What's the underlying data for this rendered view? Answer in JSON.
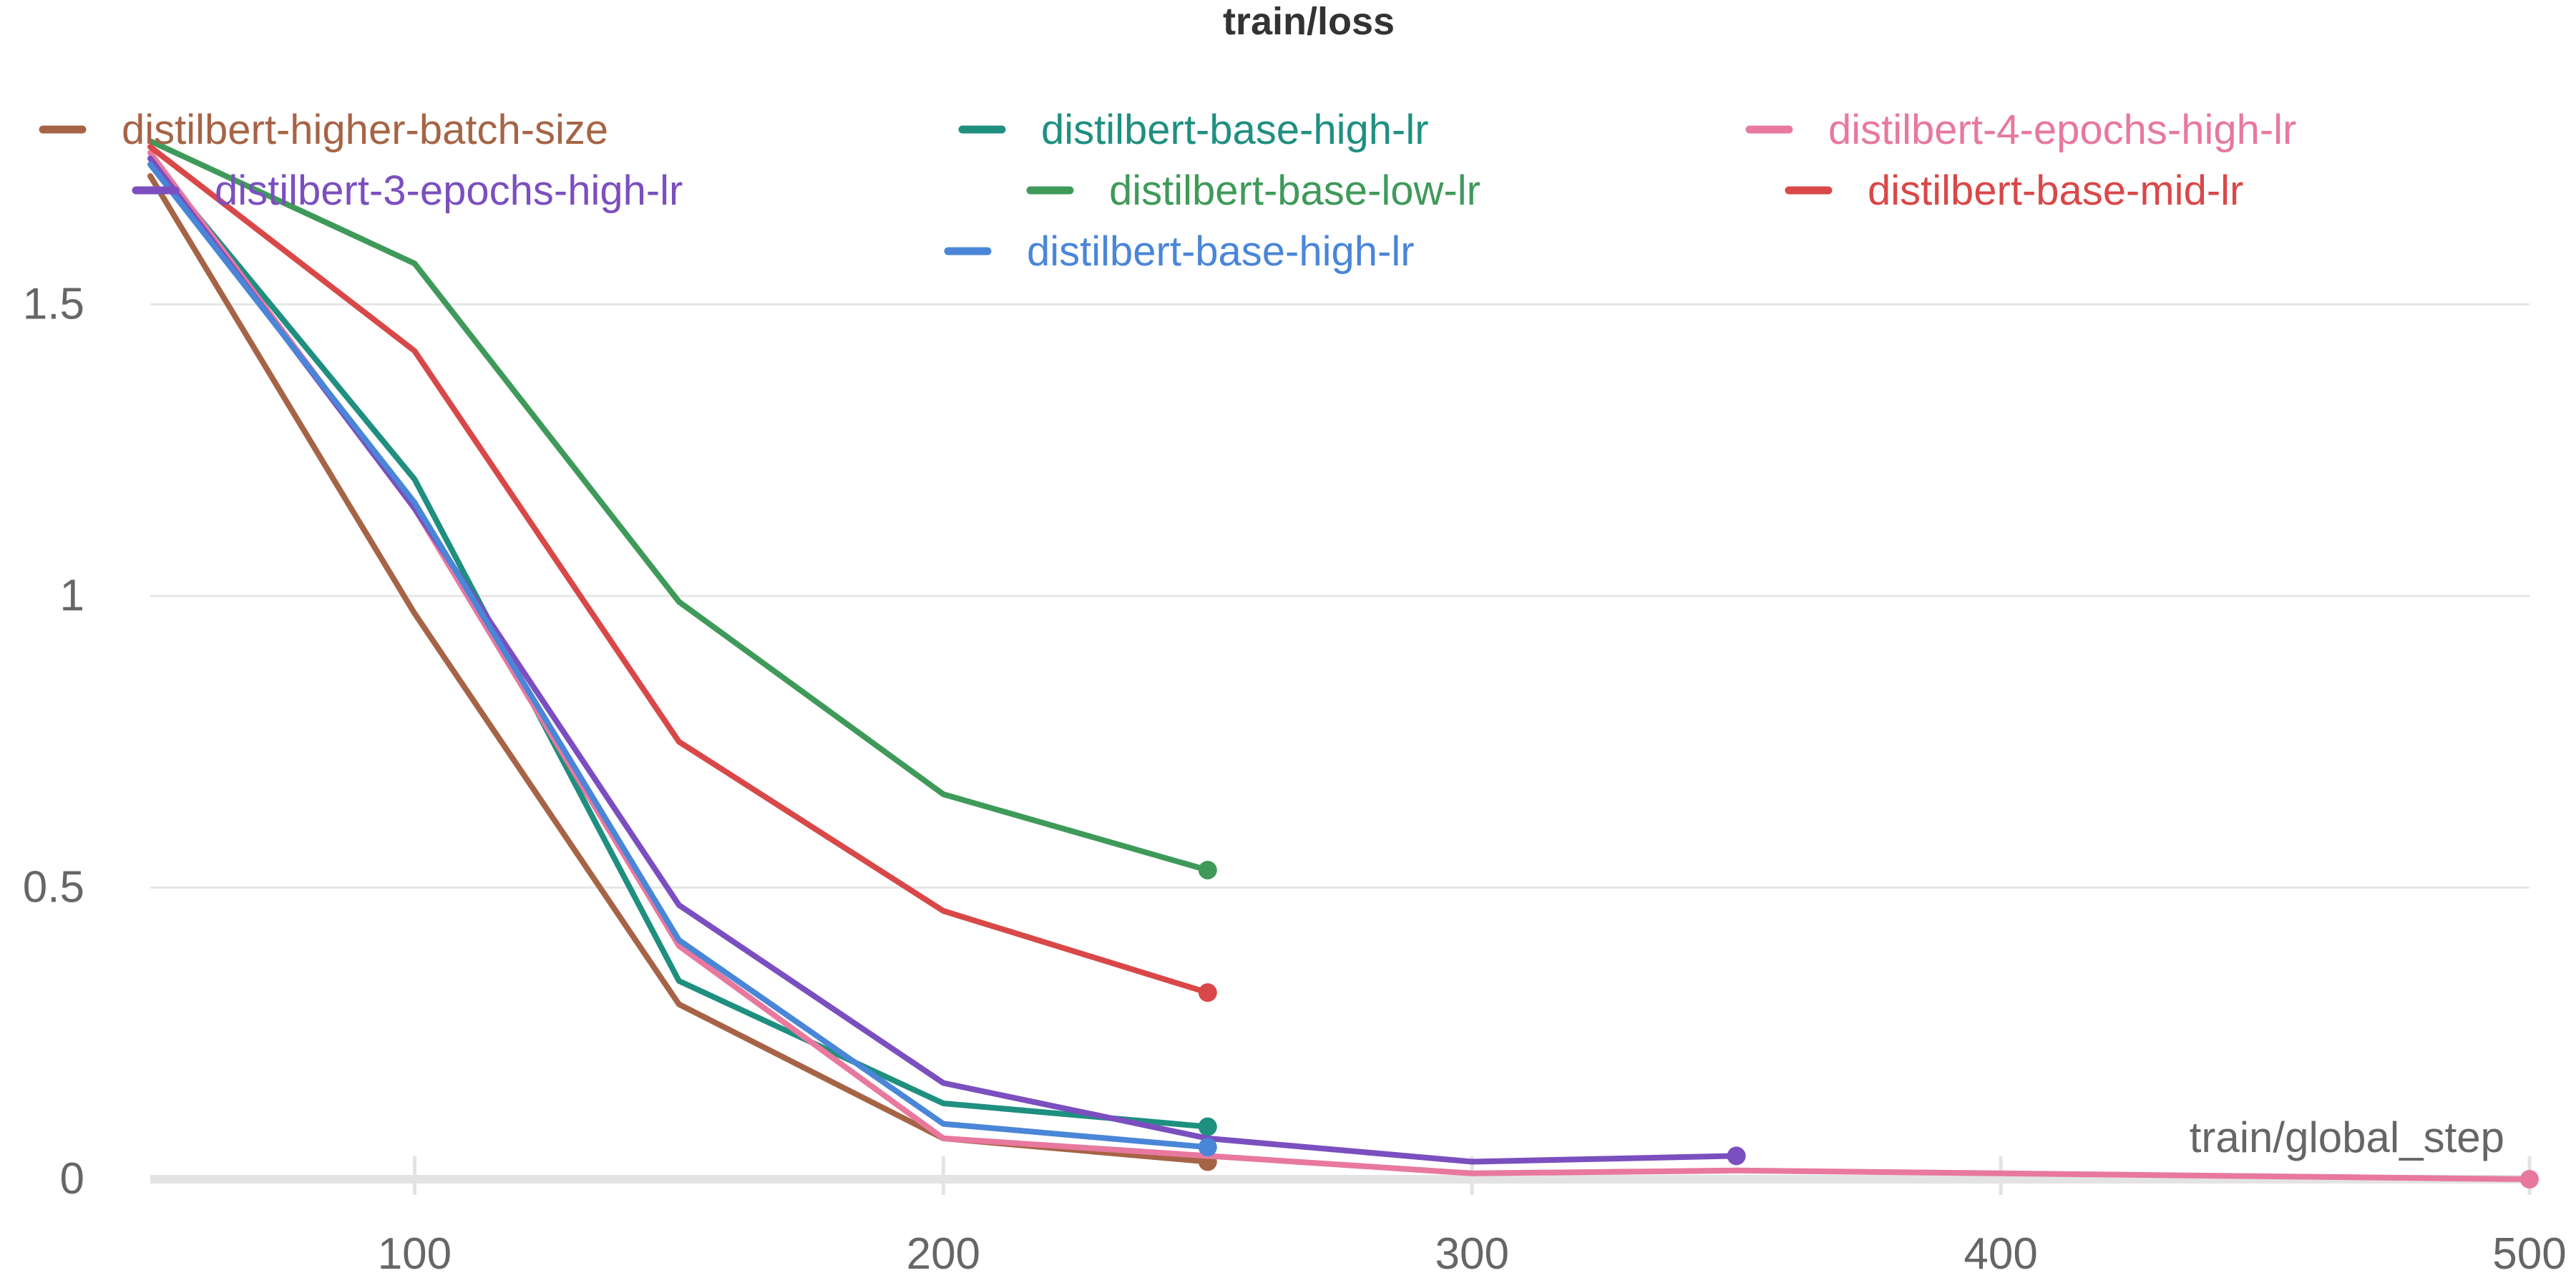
{
  "chart_data": {
    "type": "line",
    "title": "train/loss",
    "xlabel": "train/global_step",
    "ylabel": "",
    "xlim": [
      50,
      500
    ],
    "ylim": [
      0,
      1.85
    ],
    "xticks": [
      100,
      200,
      300,
      400,
      500
    ],
    "xtick_labels": [
      "100",
      "200",
      "300",
      "400",
      "500"
    ],
    "yticks": [
      0,
      0.5,
      1,
      1.5
    ],
    "ytick_labels": [
      "0",
      "0.5",
      "1",
      "1.5"
    ],
    "grid": true,
    "legend_position": "top",
    "series": [
      {
        "name": "distilbert-higher-batch-size",
        "color": "#a66446",
        "x": [
          50,
          100,
          150,
          200,
          250
        ],
        "y": [
          1.72,
          0.97,
          0.3,
          0.07,
          0.03
        ]
      },
      {
        "name": "distilbert-base-high-lr",
        "color": "#1f8f80",
        "x": [
          50,
          100,
          150,
          200,
          250
        ],
        "y": [
          1.75,
          1.2,
          0.34,
          0.13,
          0.09
        ]
      },
      {
        "name": "distilbert-4-epochs-high-lr",
        "color": "#e8789e",
        "x": [
          50,
          100,
          150,
          200,
          250,
          300,
          350,
          400,
          450,
          500
        ],
        "y": [
          1.76,
          1.15,
          0.4,
          0.07,
          0.04,
          0.01,
          0.015,
          0.01,
          0.005,
          0.0
        ]
      },
      {
        "name": "distilbert-3-epochs-high-lr",
        "color": "#7b4fbf",
        "x": [
          50,
          100,
          150,
          200,
          250,
          300,
          350
        ],
        "y": [
          1.75,
          1.15,
          0.47,
          0.165,
          0.07,
          0.03,
          0.04
        ]
      },
      {
        "name": "distilbert-base-low-lr",
        "color": "#3f9a5a",
        "x": [
          50,
          100,
          150,
          200,
          250
        ],
        "y": [
          1.78,
          1.57,
          0.99,
          0.66,
          0.53
        ]
      },
      {
        "name": "distilbert-base-mid-lr",
        "color": "#d94848",
        "x": [
          50,
          100,
          150,
          200,
          250
        ],
        "y": [
          1.77,
          1.42,
          0.75,
          0.46,
          0.32
        ]
      },
      {
        "name": "distilbert-base-high-lr",
        "color": "#4a86d8",
        "x": [
          50,
          100,
          150,
          200,
          250
        ],
        "y": [
          1.74,
          1.16,
          0.41,
          0.095,
          0.055
        ]
      }
    ]
  }
}
